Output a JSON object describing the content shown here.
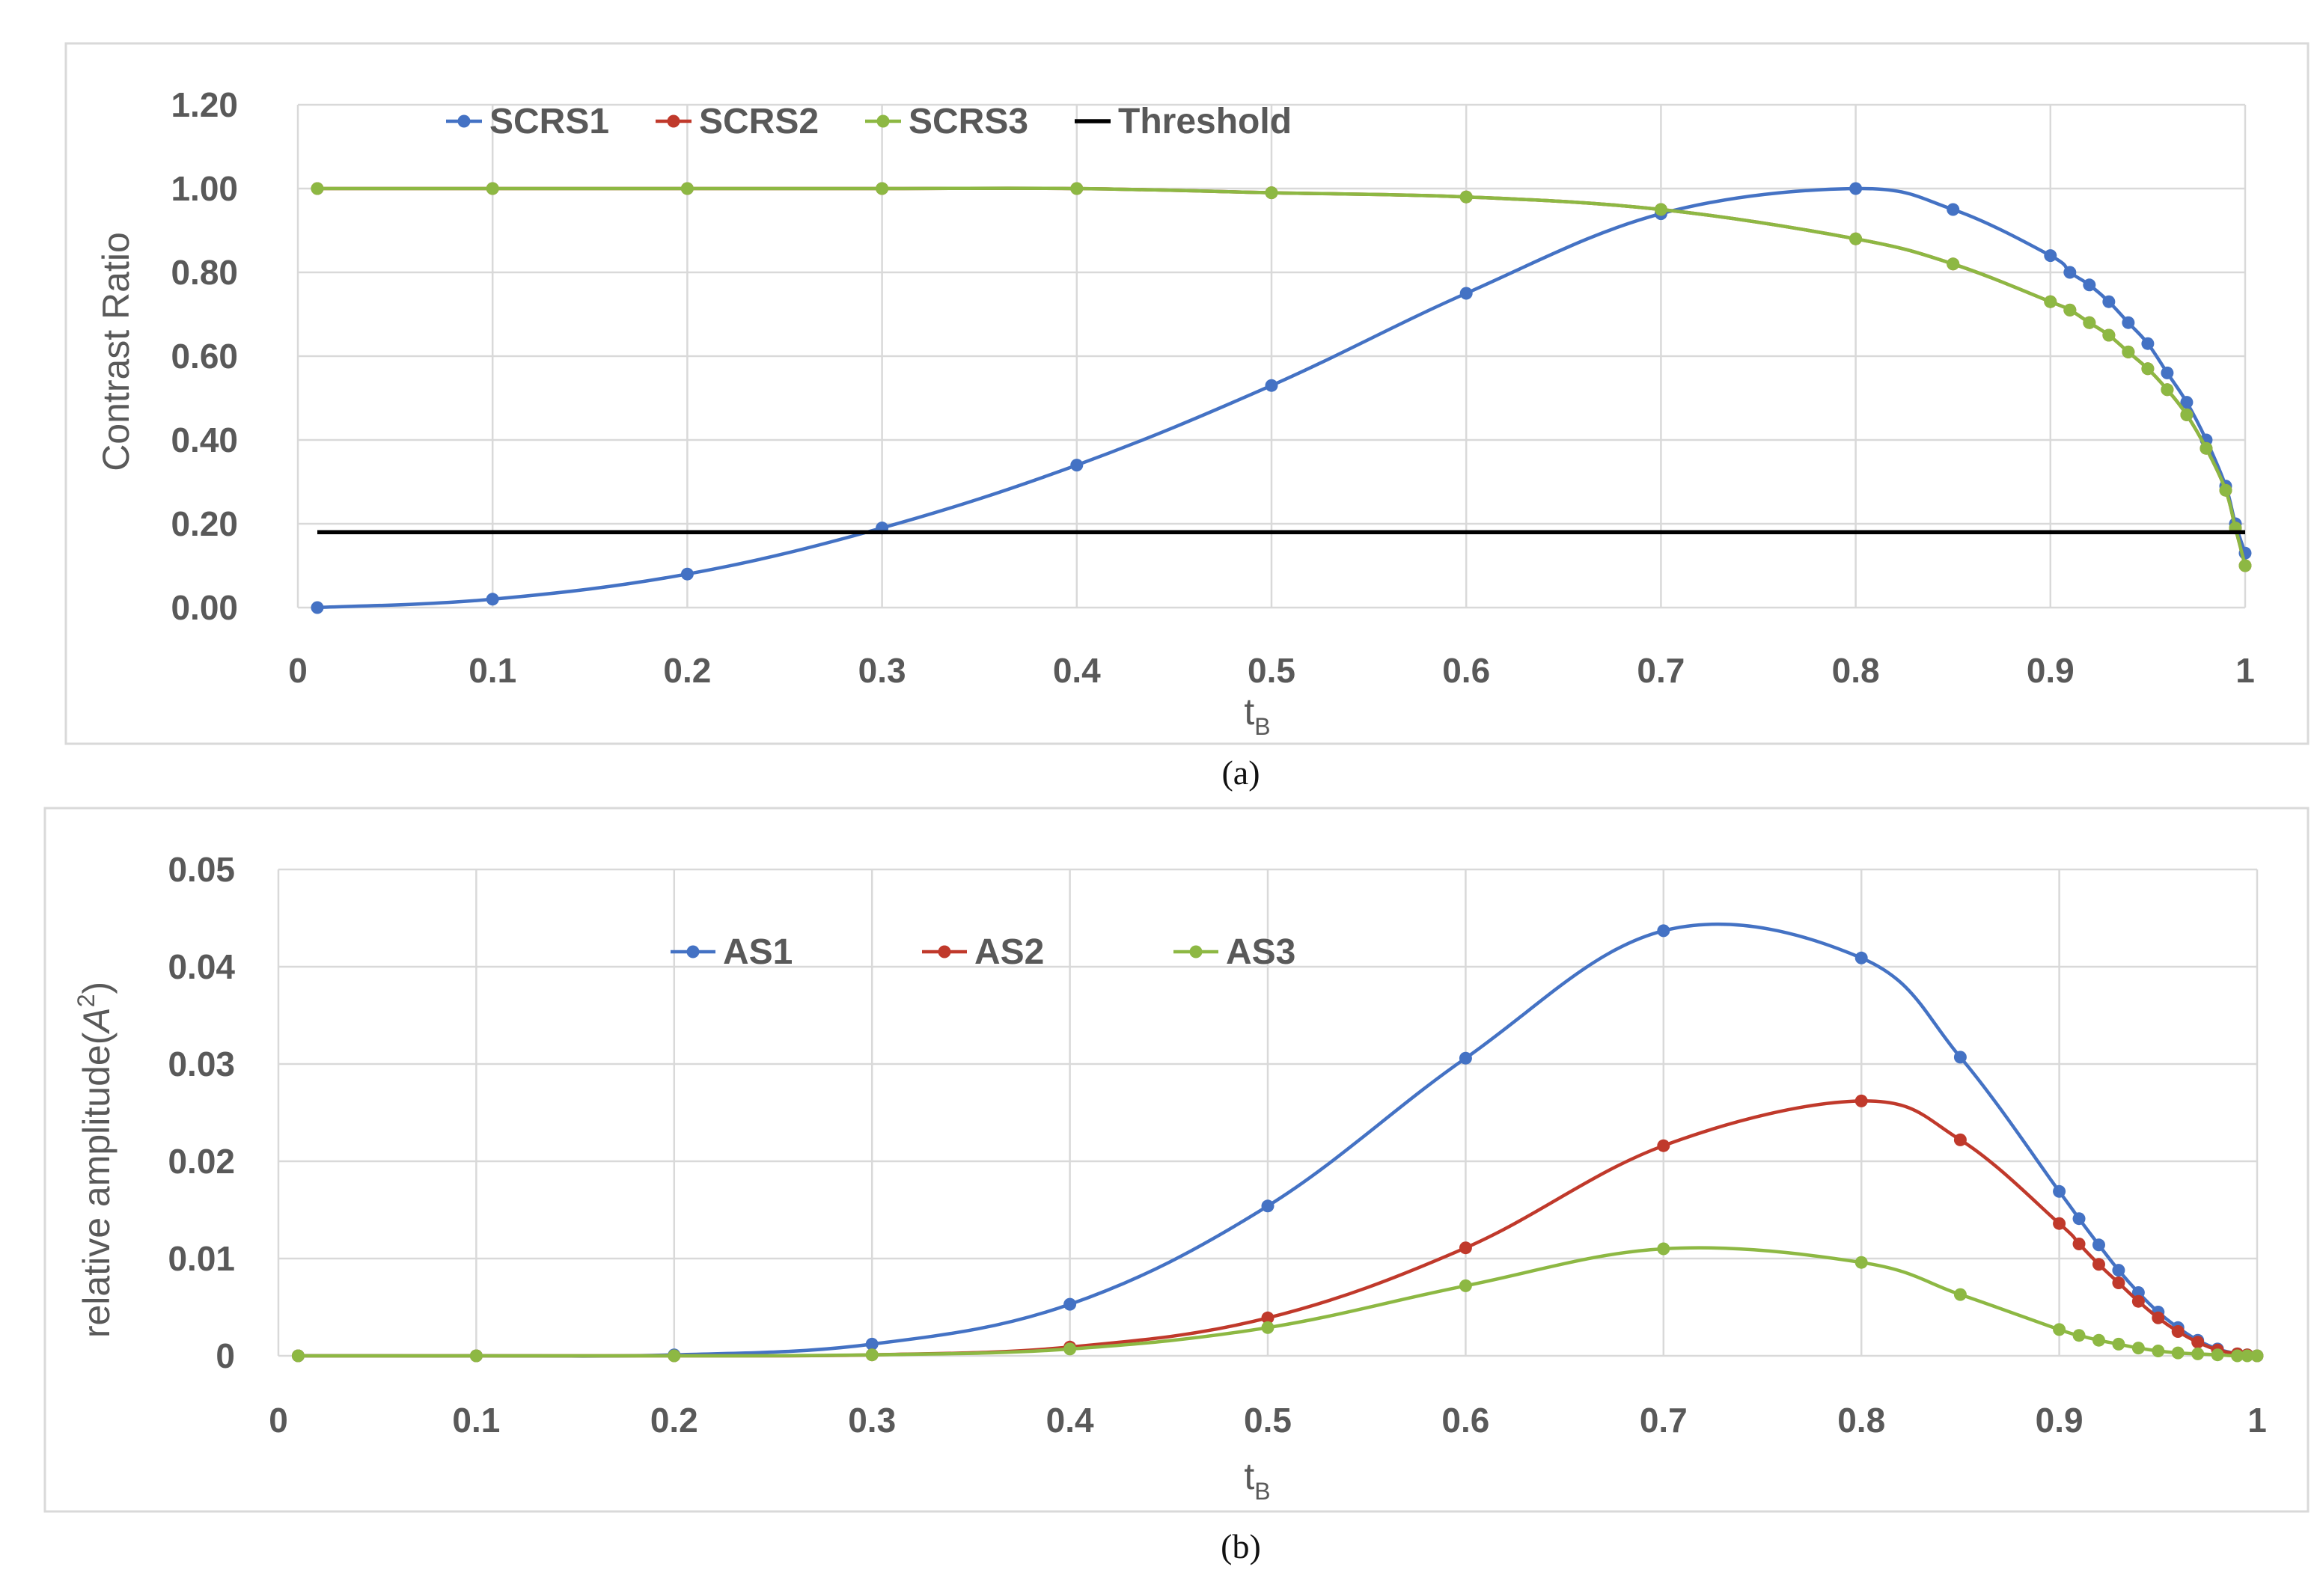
{
  "chart_data": [
    {
      "type": "line",
      "caption": "(a)",
      "xlabel": "t",
      "xlabel_sub": "B",
      "ylabel": "Contrast Ratio",
      "xlim": [
        0,
        1
      ],
      "ylim": [
        0,
        1.2
      ],
      "xticks": [
        0,
        0.1,
        0.2,
        0.3,
        0.4,
        0.5,
        0.6,
        0.7,
        0.8,
        0.9,
        1
      ],
      "xtick_labels": [
        "0",
        "0.1",
        "0.2",
        "0.3",
        "0.4",
        "0.5",
        "0.6",
        "0.7",
        "0.8",
        "0.9",
        "1"
      ],
      "yticks": [
        0,
        0.2,
        0.4,
        0.6,
        0.8,
        1.0,
        1.2
      ],
      "ytick_labels": [
        "0.00",
        "0.20",
        "0.40",
        "0.60",
        "0.80",
        "1.00",
        "1.20"
      ],
      "grid": true,
      "legend_position": "top",
      "series": [
        {
          "name": "SCRS1",
          "color": "#4472c4",
          "markers": true,
          "x": [
            0.01,
            0.1,
            0.2,
            0.3,
            0.4,
            0.5,
            0.6,
            0.7,
            0.8,
            0.85,
            0.9,
            0.91,
            0.92,
            0.93,
            0.94,
            0.95,
            0.96,
            0.97,
            0.98,
            0.99,
            0.995,
            1
          ],
          "y": [
            0.0,
            0.02,
            0.08,
            0.19,
            0.34,
            0.53,
            0.75,
            0.94,
            1.0,
            0.95,
            0.84,
            0.8,
            0.77,
            0.73,
            0.68,
            0.63,
            0.56,
            0.49,
            0.4,
            0.29,
            0.2,
            0.13
          ]
        },
        {
          "name": "SCRS2",
          "color": "#c0392b",
          "markers": true,
          "x": [
            0.01,
            0.1,
            0.2,
            0.3,
            0.4,
            0.5,
            0.6,
            0.7,
            0.8,
            0.85,
            0.9,
            0.91,
            0.92,
            0.93,
            0.94,
            0.95,
            0.96,
            0.97,
            0.98,
            0.99,
            0.995,
            1
          ],
          "y": [
            1.0,
            1.0,
            1.0,
            1.0,
            1.0,
            0.99,
            0.98,
            0.95,
            0.88,
            0.82,
            0.73,
            0.71,
            0.68,
            0.65,
            0.61,
            0.57,
            0.52,
            0.46,
            0.38,
            0.28,
            0.19,
            0.1
          ]
        },
        {
          "name": "SCRS3",
          "color": "#8db843",
          "markers": true,
          "x": [
            0.01,
            0.1,
            0.2,
            0.3,
            0.4,
            0.5,
            0.6,
            0.7,
            0.8,
            0.85,
            0.9,
            0.91,
            0.92,
            0.93,
            0.94,
            0.95,
            0.96,
            0.97,
            0.98,
            0.99,
            0.995,
            1
          ],
          "y": [
            1.0,
            1.0,
            1.0,
            1.0,
            1.0,
            0.99,
            0.98,
            0.95,
            0.88,
            0.82,
            0.73,
            0.71,
            0.68,
            0.65,
            0.61,
            0.57,
            0.52,
            0.46,
            0.38,
            0.28,
            0.19,
            0.1
          ]
        },
        {
          "name": "Threshold",
          "color": "#000000",
          "markers": false,
          "x": [
            0.01,
            1
          ],
          "y": [
            0.18,
            0.18
          ]
        }
      ]
    },
    {
      "type": "line",
      "caption": "(b)",
      "xlabel": "t",
      "xlabel_sub": "B",
      "ylabel": "relative amplitude(",
      "ylabel_var": "A",
      "ylabel_sup": "2",
      "ylabel_end": ")",
      "xlim": [
        0,
        1
      ],
      "ylim": [
        0,
        0.05
      ],
      "xticks": [
        0,
        0.1,
        0.2,
        0.3,
        0.4,
        0.5,
        0.6,
        0.7,
        0.8,
        0.9,
        1
      ],
      "xtick_labels": [
        "0",
        "0.1",
        "0.2",
        "0.3",
        "0.4",
        "0.5",
        "0.6",
        "0.7",
        "0.8",
        "0.9",
        "1"
      ],
      "yticks": [
        0,
        0.01,
        0.02,
        0.03,
        0.04,
        0.05
      ],
      "ytick_labels": [
        "0",
        "0.01",
        "0.02",
        "0.03",
        "0.04",
        "0.05"
      ],
      "grid": true,
      "legend_position": "top-center",
      "series": [
        {
          "name": "AS1",
          "color": "#4472c4",
          "markers": true,
          "x": [
            0.01,
            0.1,
            0.2,
            0.3,
            0.4,
            0.5,
            0.6,
            0.7,
            0.8,
            0.85,
            0.9,
            0.91,
            0.92,
            0.93,
            0.94,
            0.95,
            0.96,
            0.97,
            0.98,
            0.99,
            0.995,
            1
          ],
          "y": [
            0.0,
            0.0,
            0.0001,
            0.0012,
            0.0053,
            0.0154,
            0.0306,
            0.0437,
            0.0409,
            0.0307,
            0.0169,
            0.0141,
            0.0114,
            0.0088,
            0.0065,
            0.0045,
            0.0029,
            0.0016,
            0.0007,
            0.0002,
            0.0001,
            0.0
          ]
        },
        {
          "name": "AS2",
          "color": "#c0392b",
          "markers": true,
          "x": [
            0.01,
            0.1,
            0.2,
            0.3,
            0.4,
            0.5,
            0.6,
            0.7,
            0.8,
            0.85,
            0.9,
            0.91,
            0.92,
            0.93,
            0.94,
            0.95,
            0.96,
            0.97,
            0.98,
            0.99,
            0.995,
            1
          ],
          "y": [
            0.0,
            0.0,
            0.0,
            0.0001,
            0.0009,
            0.0039,
            0.0111,
            0.0216,
            0.0262,
            0.0222,
            0.0136,
            0.0115,
            0.0094,
            0.0075,
            0.0056,
            0.0039,
            0.0025,
            0.0014,
            0.0006,
            0.0002,
            0.0001,
            0.0
          ]
        },
        {
          "name": "AS3",
          "color": "#8db843",
          "markers": true,
          "x": [
            0.01,
            0.1,
            0.2,
            0.3,
            0.4,
            0.5,
            0.6,
            0.7,
            0.8,
            0.85,
            0.9,
            0.91,
            0.92,
            0.93,
            0.94,
            0.95,
            0.96,
            0.97,
            0.98,
            0.99,
            0.995,
            1
          ],
          "y": [
            0.0,
            0.0,
            0.0,
            0.0001,
            0.0007,
            0.0029,
            0.0072,
            0.011,
            0.0096,
            0.0063,
            0.0027,
            0.0021,
            0.0016,
            0.0012,
            0.0008,
            0.0005,
            0.0003,
            0.0002,
            0.0001,
            0.0,
            0.0,
            0.0
          ]
        }
      ]
    }
  ]
}
